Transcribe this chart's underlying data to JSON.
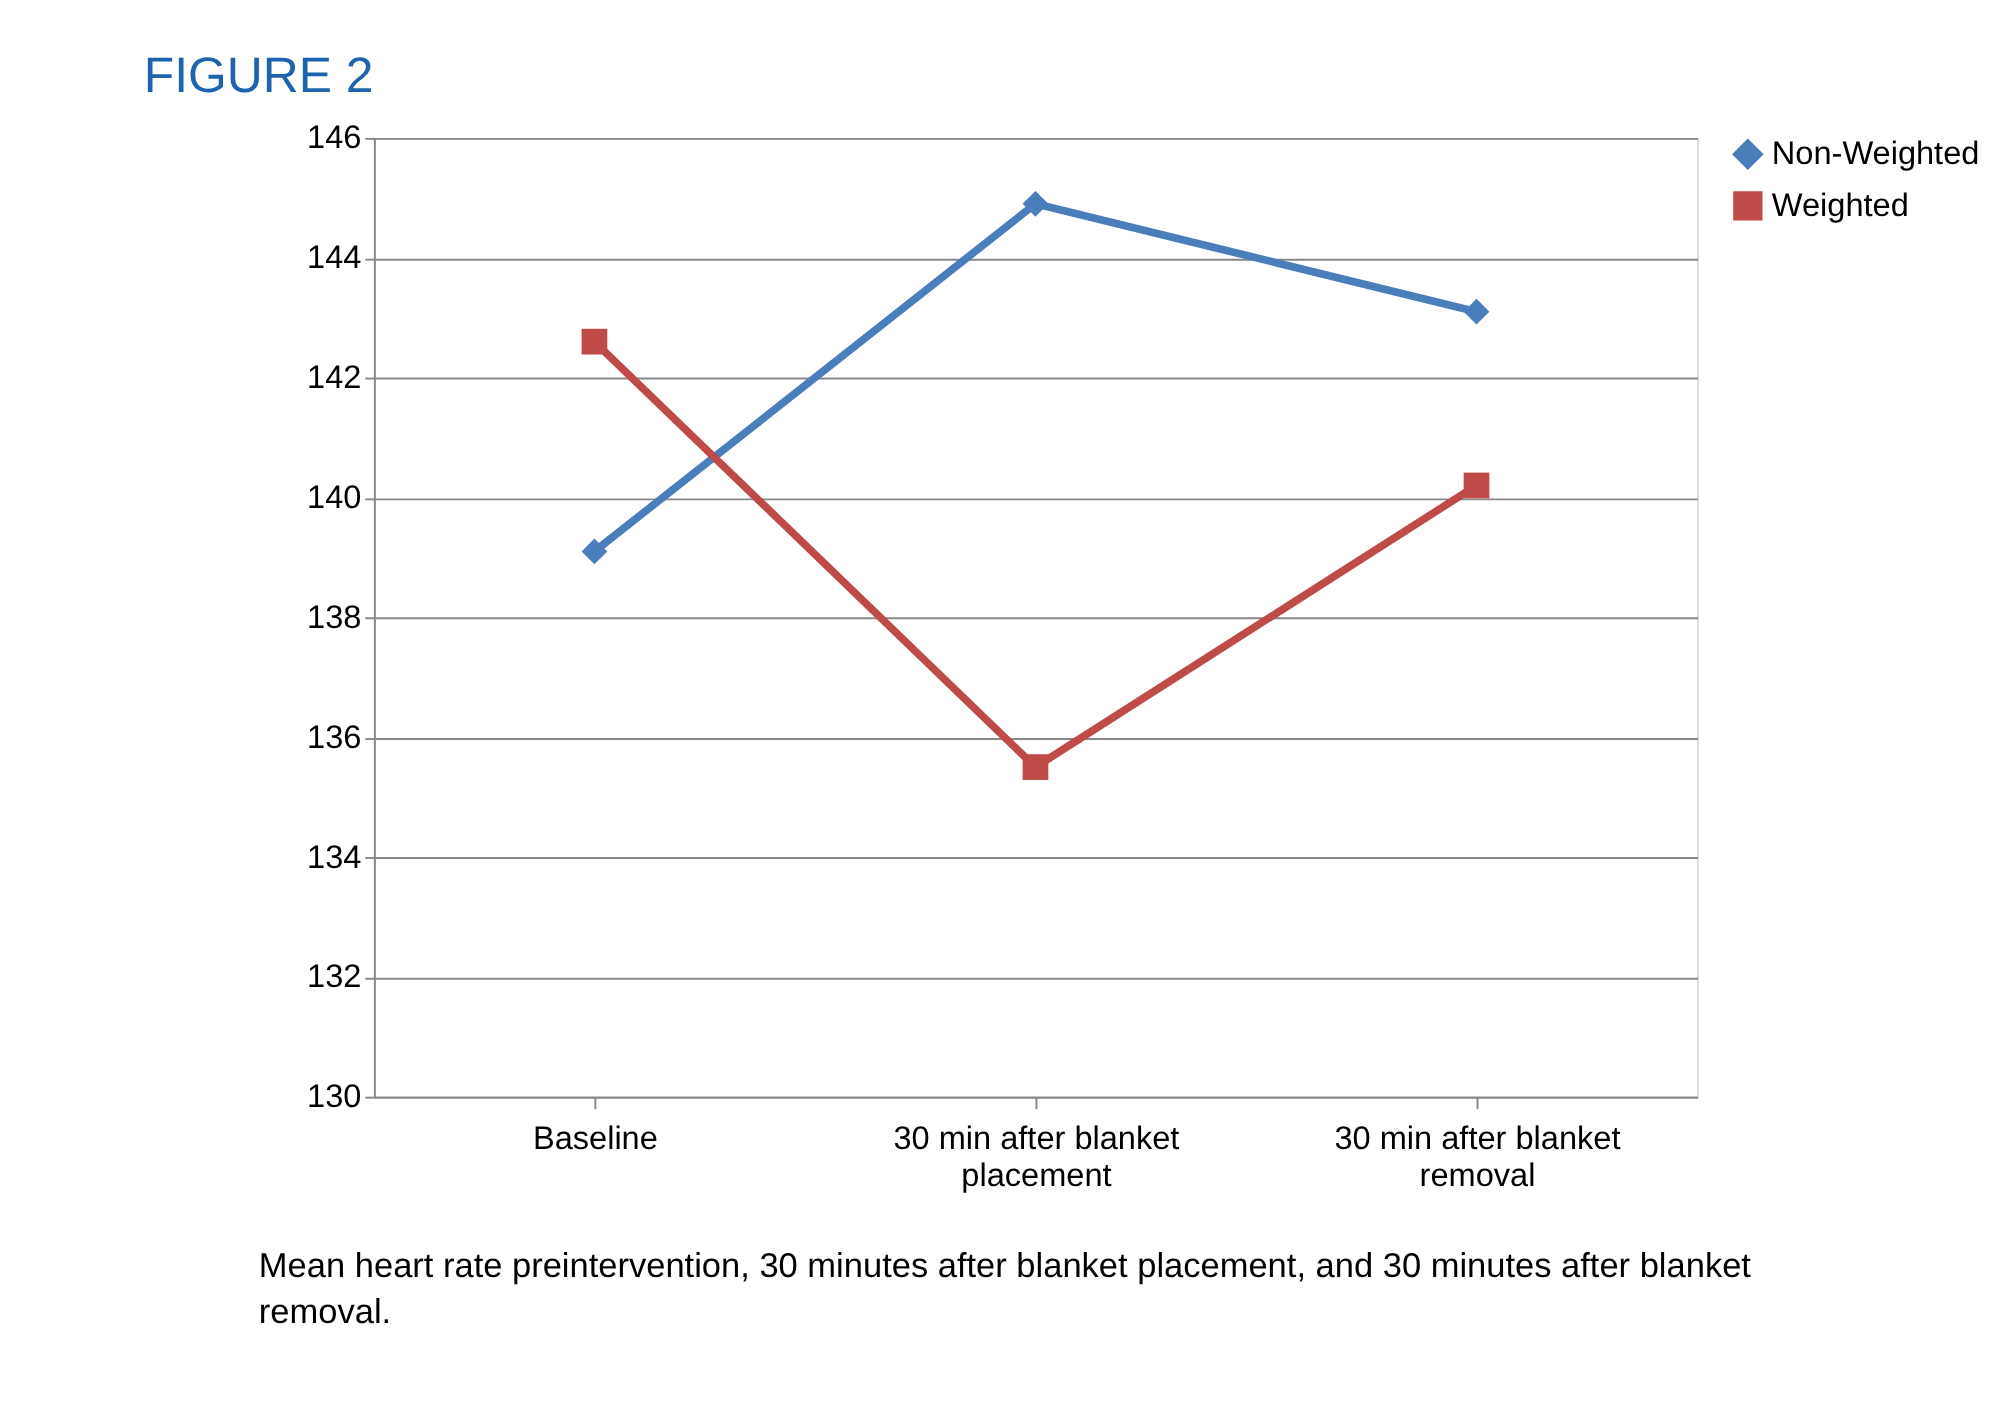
{
  "chart_data": {
    "type": "line",
    "title": "FIGURE 2",
    "categories": [
      "Baseline",
      "30 min after blanket placement",
      "30 min after blanket removal"
    ],
    "series": [
      {
        "name": "Non-Weighted",
        "color": "#4a7ebb",
        "marker": "diamond",
        "values": [
          139.1,
          144.9,
          143.1
        ]
      },
      {
        "name": "Weighted",
        "color": "#be4b48",
        "marker": "square",
        "values": [
          142.6,
          135.5,
          140.2
        ]
      }
    ],
    "ylim": [
      130,
      146
    ],
    "yticks": [
      130,
      132,
      134,
      136,
      138,
      140,
      142,
      144,
      146
    ],
    "grid": "y",
    "legend": "right",
    "annotations": [
      "Mean heart rate preintervention, 30 minutes after blanket placement, and 30 minutes after blanket removal."
    ]
  }
}
